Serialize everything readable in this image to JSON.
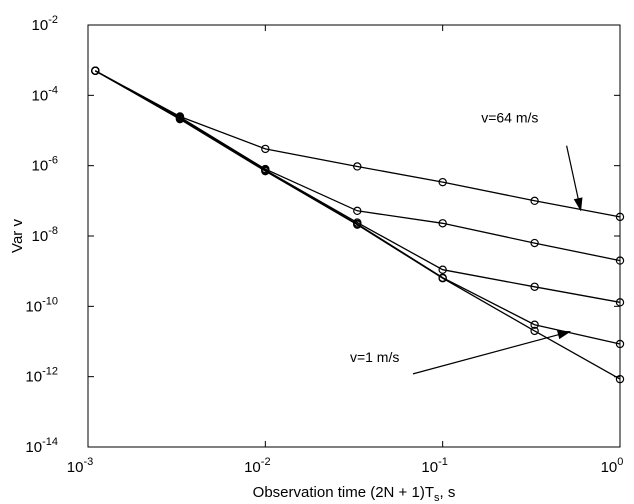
{
  "chart_data": {
    "type": "line",
    "title": "",
    "xlabel": "Observation time (2N + 1)T_s, s",
    "xlabel_main": "Observation time (2N + 1)T",
    "xlabel_sub": "s",
    "xlabel_tail": ", s",
    "ylabel": "Var v",
    "x_scale": "log",
    "y_scale": "log",
    "xlim": [
      0.001,
      1
    ],
    "ylim": [
      1e-14,
      0.01
    ],
    "grid": false,
    "x_ticks": [
      {
        "value": 0.001,
        "base": "10",
        "exp": "-3"
      },
      {
        "value": 0.01,
        "base": "10",
        "exp": "-2"
      },
      {
        "value": 0.1,
        "base": "10",
        "exp": "-1"
      },
      {
        "value": 1,
        "base": "10",
        "exp": "0"
      }
    ],
    "y_ticks": [
      {
        "value": 1e-14,
        "base": "10",
        "exp": "-14"
      },
      {
        "value": 1e-12,
        "base": "10",
        "exp": "-12"
      },
      {
        "value": 1e-10,
        "base": "10",
        "exp": "-10"
      },
      {
        "value": 1e-08,
        "base": "10",
        "exp": "-8"
      },
      {
        "value": 1e-06,
        "base": "10",
        "exp": "-6"
      },
      {
        "value": 0.0001,
        "base": "10",
        "exp": "-4"
      },
      {
        "value": 0.01,
        "base": "10",
        "exp": "-2"
      }
    ],
    "series": [
      {
        "x": [
          0.0011,
          0.0033,
          0.01,
          0.033,
          0.1,
          0.33,
          1
        ],
        "y": [
          0.0005,
          2.5e-05,
          3e-06,
          9.5e-07,
          3.4e-07,
          1e-07,
          3.5e-08
        ]
      },
      {
        "x": [
          0.0011,
          0.0033,
          0.01,
          0.033,
          0.1,
          0.33,
          1
        ],
        "y": [
          0.0005,
          2.4e-05,
          8e-07,
          5.2e-08,
          2.3e-08,
          6.3e-09,
          2e-09
        ]
      },
      {
        "x": [
          0.0011,
          0.0033,
          0.01,
          0.033,
          0.1,
          0.33,
          1
        ],
        "y": [
          0.0005,
          2.3e-05,
          7.5e-07,
          2.4e-08,
          1.1e-09,
          3.6e-10,
          1.3e-10
        ]
      },
      {
        "x": [
          0.0011,
          0.0033,
          0.01,
          0.033,
          0.1,
          0.33,
          1
        ],
        "y": [
          0.0005,
          2.2e-05,
          7.2e-07,
          2.2e-08,
          6.5e-10,
          3e-11,
          8.5e-12
        ]
      },
      {
        "x": [
          0.0011,
          0.0033,
          0.01,
          0.033,
          0.1,
          0.33,
          1
        ],
        "y": [
          0.0005,
          2.1e-05,
          7e-07,
          2.1e-08,
          6.3e-10,
          2e-11,
          8.5e-13
        ]
      }
    ],
    "annotations": [
      {
        "text": "v=64 m/s",
        "text_x": 0.165,
        "text_y": 1.7e-05,
        "arrow_from": [
          0.5,
          3.7e-06
        ],
        "arrow_to": [
          0.6,
          5.5e-08
        ]
      },
      {
        "text": "v=1 m/s",
        "text_x": 0.03,
        "text_y": 2.6e-12,
        "arrow_from": [
          0.068,
          1.2e-12
        ],
        "arrow_to": [
          0.52,
          1.9e-11
        ]
      }
    ]
  }
}
